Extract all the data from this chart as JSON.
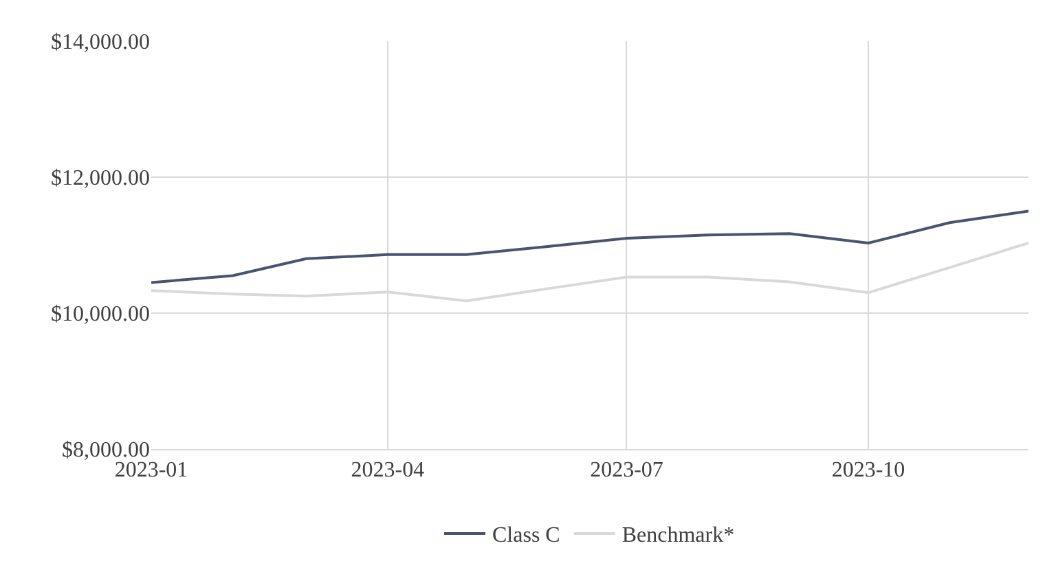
{
  "chart_data": {
    "type": "line",
    "x": [
      "2023-01",
      "2023-02",
      "2023-03",
      "2023-04",
      "2023-05",
      "2023-06",
      "2023-07",
      "2023-08",
      "2023-09",
      "2023-10",
      "2023-11",
      "2023-12"
    ],
    "series": [
      {
        "name": "Class C",
        "color": "#4a5470",
        "values": [
          10450,
          10550,
          10800,
          10860,
          10860,
          10980,
          11100,
          11150,
          11170,
          11030,
          11330,
          11500
        ]
      },
      {
        "name": "Benchmark*",
        "color": "#d9d9d9",
        "values": [
          10330,
          10280,
          10250,
          10310,
          10180,
          10360,
          10530,
          10530,
          10460,
          10300,
          10670,
          11030
        ]
      }
    ],
    "xlim": [
      "2023-01",
      "2023-12"
    ],
    "xticks": [
      "2023-01",
      "2023-04",
      "2023-07",
      "2023-10"
    ],
    "ylim": [
      8000,
      14000
    ],
    "yticks": [
      {
        "value": 8000,
        "label": "$8,000.00"
      },
      {
        "value": 10000,
        "label": "$10,000.00"
      },
      {
        "value": 12000,
        "label": "$12,000.00"
      },
      {
        "value": 14000,
        "label": "$14,000.00"
      }
    ],
    "grid": true,
    "legend": "bottom",
    "marker": "none",
    "line_style": "solid"
  }
}
